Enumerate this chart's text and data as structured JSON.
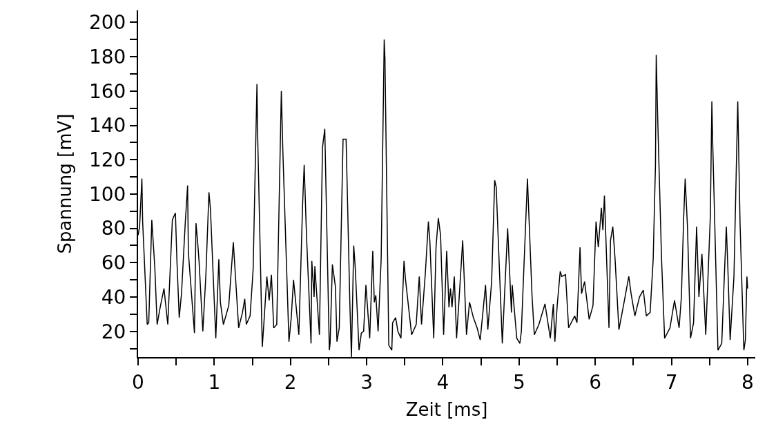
{
  "chart_data": {
    "type": "line",
    "xlabel": "Zeit [ms]",
    "ylabel": "Spannung [mV]",
    "xlim": [
      0,
      8.1
    ],
    "ylim": [
      5,
      207
    ],
    "xticks": [
      0,
      {
        "value": 0.5,
        "label": null
      },
      1,
      {
        "value": 1.5,
        "label": null
      },
      2,
      {
        "value": 2.5,
        "label": null
      },
      3,
      {
        "value": 3.5,
        "label": null
      },
      4,
      {
        "value": 4.5,
        "label": null
      },
      5,
      {
        "value": 5.5,
        "label": null
      },
      6,
      {
        "value": 6.5,
        "label": null
      },
      7,
      {
        "value": 7.5,
        "label": null
      },
      8
    ],
    "yticks": [
      {
        "value": 10,
        "label": null
      },
      20,
      {
        "value": 30,
        "label": null
      },
      40,
      {
        "value": 50,
        "label": null
      },
      60,
      {
        "value": 70,
        "label": null
      },
      80,
      {
        "value": 90,
        "label": null
      },
      100,
      {
        "value": 110,
        "label": null
      },
      120,
      {
        "value": 130,
        "label": null
      },
      140,
      {
        "value": 150,
        "label": null
      },
      160,
      {
        "value": 170,
        "label": null
      },
      180,
      {
        "value": 190,
        "label": null
      },
      200
    ],
    "marker": "none",
    "line_style": "solid",
    "series": [
      {
        "color": "#000000",
        "x": [
          0.0,
          0.02,
          0.05,
          0.06,
          0.12,
          0.14,
          0.18,
          0.22,
          0.25,
          0.29,
          0.34,
          0.39,
          0.45,
          0.49,
          0.51,
          0.54,
          0.57,
          0.62,
          0.65,
          0.66,
          0.74,
          0.76,
          0.78,
          0.8,
          0.85,
          0.89,
          0.93,
          0.95,
          1.02,
          1.06,
          1.08,
          1.12,
          1.19,
          1.25,
          1.32,
          1.37,
          1.4,
          1.42,
          1.47,
          1.51,
          1.56,
          1.57,
          1.63,
          1.65,
          1.69,
          1.72,
          1.75,
          1.78,
          1.82,
          1.88,
          1.9,
          1.98,
          2.01,
          2.04,
          2.11,
          2.16,
          2.18,
          2.21,
          2.27,
          2.28,
          2.31,
          2.32,
          2.38,
          2.42,
          2.45,
          2.51,
          2.52,
          2.55,
          2.59,
          2.61,
          2.64,
          2.69,
          2.73,
          2.78,
          2.8,
          2.83,
          2.85,
          2.9,
          2.93,
          2.96,
          2.99,
          3.04,
          3.08,
          3.1,
          3.12,
          3.15,
          3.19,
          3.23,
          3.24,
          3.29,
          3.33,
          3.34,
          3.38,
          3.41,
          3.45,
          3.49,
          3.51,
          3.59,
          3.65,
          3.69,
          3.72,
          3.77,
          3.81,
          3.83,
          3.88,
          3.91,
          3.94,
          3.97,
          4.01,
          4.05,
          4.08,
          4.1,
          4.12,
          4.15,
          4.18,
          4.22,
          4.26,
          4.31,
          4.35,
          4.4,
          4.45,
          4.49,
          4.56,
          4.59,
          4.64,
          4.68,
          4.7,
          4.78,
          4.85,
          4.9,
          4.91,
          4.97,
          5.01,
          5.03,
          5.11,
          5.17,
          5.2,
          5.26,
          5.34,
          5.41,
          5.45,
          5.47,
          5.5,
          5.54,
          5.56,
          5.61,
          5.65,
          5.73,
          5.76,
          5.8,
          5.82,
          5.86,
          5.92,
          5.97,
          6.01,
          6.04,
          6.08,
          6.1,
          6.12,
          6.18,
          6.2,
          6.23,
          6.26,
          6.31,
          6.37,
          6.44,
          6.47,
          6.52,
          6.58,
          6.63,
          6.67,
          6.72,
          6.76,
          6.79,
          6.8,
          6.82,
          6.87,
          6.91,
          6.98,
          7.04,
          7.1,
          7.13,
          7.16,
          7.18,
          7.21,
          7.25,
          7.29,
          7.33,
          7.36,
          7.4,
          7.45,
          7.51,
          7.53,
          7.54,
          7.61,
          7.66,
          7.69,
          7.72,
          7.74,
          7.77,
          7.82,
          7.87,
          7.9,
          7.95,
          7.97,
          7.99,
          8.0
        ],
        "values": [
          76,
          81,
          109,
          84,
          24,
          25,
          85,
          57,
          24,
          34,
          45,
          24,
          85,
          89,
          61,
          28,
          42,
          84,
          105,
          66,
          19,
          83,
          73,
          61,
          20,
          53,
          101,
          91,
          16,
          62,
          37,
          24,
          35,
          72,
          22,
          31,
          39,
          24,
          29,
          56,
          164,
          133,
          11,
          24,
          52,
          38,
          53,
          22,
          24,
          160,
          125,
          14,
          28,
          50,
          18,
          95,
          117,
          76,
          13,
          61,
          40,
          58,
          18,
          127,
          138,
          9,
          13,
          59,
          46,
          14,
          22,
          132,
          132,
          35,
          5,
          70,
          57,
          9,
          19,
          20,
          47,
          16,
          67,
          37,
          41,
          20,
          62,
          190,
          179,
          12,
          9,
          25,
          28,
          20,
          16,
          61,
          50,
          18,
          24,
          52,
          24,
          54,
          84,
          72,
          16,
          69,
          86,
          76,
          18,
          67,
          34,
          45,
          34,
          52,
          16,
          44,
          73,
          18,
          37,
          28,
          22,
          15,
          47,
          21,
          49,
          108,
          104,
          13,
          80,
          31,
          47,
          16,
          13,
          20,
          109,
          41,
          18,
          24,
          36,
          16,
          36,
          14,
          35,
          55,
          52,
          53,
          22,
          29,
          25,
          69,
          42,
          49,
          27,
          35,
          84,
          69,
          92,
          79,
          99,
          22,
          73,
          81,
          62,
          21,
          35,
          52,
          42,
          29,
          40,
          44,
          29,
          31,
          62,
          117,
          181,
          143,
          62,
          16,
          22,
          38,
          22,
          40,
          86,
          109,
          81,
          16,
          25,
          81,
          40,
          65,
          18,
          87,
          154,
          132,
          9,
          13,
          48,
          81,
          57,
          15,
          52,
          154,
          83,
          9,
          15,
          52,
          45
        ]
      }
    ]
  }
}
